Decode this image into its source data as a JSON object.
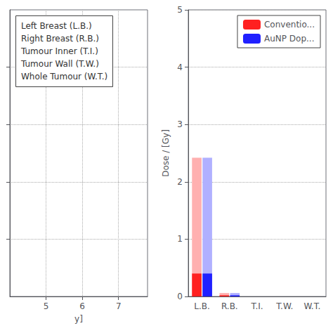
{
  "chart_data": [
    {
      "type": "blank",
      "xlabel": "y]",
      "xlim": [
        4.0,
        7.8
      ],
      "xticks": [
        5,
        6,
        7
      ],
      "ylim": [
        0,
        5
      ],
      "yticks": [
        1,
        2,
        3,
        4
      ],
      "tick_labels": "x",
      "grid": true,
      "legend": "upper left",
      "annotations": [
        "Left Breast (L.B.)",
        "Right Breast (R.B.)",
        "Tumour Inner (T.I.)",
        "Tumour Wall (T.W.)",
        "Whole Tumour (W.T.)"
      ]
    },
    {
      "type": "bar",
      "ylabel": "Dose / [Gy]",
      "categories": [
        "L.B.",
        "R.B.",
        "T.I.",
        "T.W.",
        "W.T."
      ],
      "ylim": [
        0,
        5
      ],
      "yticks": [
        0,
        1,
        2,
        3,
        4,
        5
      ],
      "grid": "y",
      "legend": "upper right",
      "series": [
        {
          "color": "#ffb0b0",
          "values": [
            2.42,
            0.06,
            0.0,
            0.0,
            0.0
          ]
        },
        {
          "name": "Conventio...",
          "color": "#ff2020",
          "values": [
            0.4,
            0.02,
            0.0,
            0.0,
            0.0
          ]
        },
        {
          "color": "#b0b0ff",
          "values": [
            2.42,
            0.06,
            0.0,
            0.0,
            0.0
          ]
        },
        {
          "name": "AuNP Dop...",
          "color": "#2020ff",
          "values": [
            0.4,
            0.02,
            0.0,
            0.0,
            0.0
          ]
        }
      ]
    }
  ]
}
